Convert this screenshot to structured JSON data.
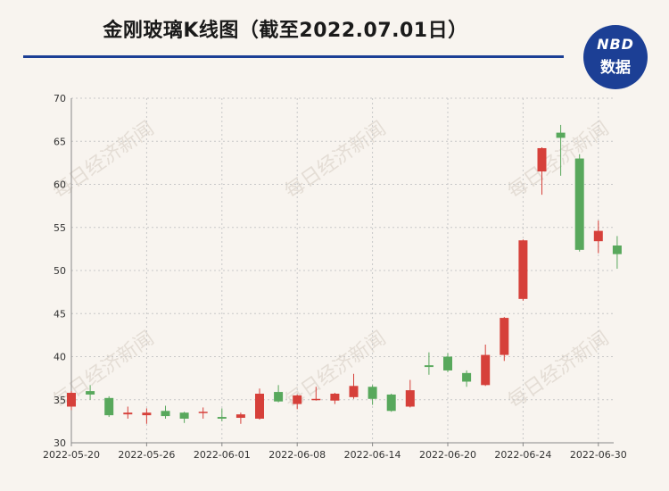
{
  "header": {
    "title": "金刚玻璃K线图（截至2022.07.01日）",
    "logo_top": "NBD",
    "logo_bottom": "数据",
    "watermark": "每日经济新闻"
  },
  "colors": {
    "up": "#d6403a",
    "down": "#58a85c",
    "accent": "#1c3f95",
    "grid": "#c8c8c8"
  },
  "chart_data": {
    "type": "candlestick",
    "title": "金刚玻璃K线图（截至2022.07.01日）",
    "ylim": [
      30,
      70
    ],
    "yticks": [
      30,
      35,
      40,
      45,
      50,
      55,
      60,
      65,
      70
    ],
    "xtick_labels": [
      "2022-05-20",
      "2022-05-26",
      "2022-06-01",
      "2022-06-08",
      "2022-06-14",
      "2022-06-20",
      "2022-06-24",
      "2022-06-30"
    ],
    "xtick_indices": [
      0,
      4,
      8,
      12,
      16,
      20,
      24,
      28
    ],
    "grid": true,
    "candles": [
      {
        "open": 34.2,
        "close": 35.8,
        "high": 36.0,
        "low": 33.8
      },
      {
        "open": 36.0,
        "close": 35.6,
        "high": 36.7,
        "low": 35.0
      },
      {
        "open": 35.2,
        "close": 33.2,
        "high": 35.4,
        "low": 33.0
      },
      {
        "open": 33.3,
        "close": 33.5,
        "high": 34.2,
        "low": 32.8
      },
      {
        "open": 33.2,
        "close": 33.5,
        "high": 34.0,
        "low": 32.2
      },
      {
        "open": 33.7,
        "close": 33.1,
        "high": 34.3,
        "low": 32.8
      },
      {
        "open": 33.5,
        "close": 32.8,
        "high": 33.6,
        "low": 32.3
      },
      {
        "open": 33.5,
        "close": 33.6,
        "high": 34.1,
        "low": 32.8
      },
      {
        "open": 33.0,
        "close": 32.8,
        "high": 34.0,
        "low": 32.5
      },
      {
        "open": 32.9,
        "close": 33.3,
        "high": 33.5,
        "low": 32.2
      },
      {
        "open": 32.8,
        "close": 35.7,
        "high": 36.3,
        "low": 32.7
      },
      {
        "open": 35.9,
        "close": 34.8,
        "high": 36.7,
        "low": 34.7
      },
      {
        "open": 34.5,
        "close": 35.5,
        "high": 35.6,
        "low": 33.9
      },
      {
        "open": 35.1,
        "close": 35.1,
        "high": 36.5,
        "low": 34.9
      },
      {
        "open": 34.9,
        "close": 35.7,
        "high": 35.8,
        "low": 34.5
      },
      {
        "open": 35.3,
        "close": 36.6,
        "high": 38.0,
        "low": 35.1
      },
      {
        "open": 36.5,
        "close": 35.1,
        "high": 36.7,
        "low": 34.4
      },
      {
        "open": 35.6,
        "close": 33.7,
        "high": 35.7,
        "low": 33.6
      },
      {
        "open": 34.2,
        "close": 36.1,
        "high": 37.3,
        "low": 34.1
      },
      {
        "open": 39.0,
        "close": 38.8,
        "high": 40.5,
        "low": 37.9
      },
      {
        "open": 40.0,
        "close": 38.4,
        "high": 40.4,
        "low": 38.2
      },
      {
        "open": 38.1,
        "close": 37.1,
        "high": 38.4,
        "low": 36.5
      },
      {
        "open": 36.7,
        "close": 40.2,
        "high": 41.4,
        "low": 36.6
      },
      {
        "open": 40.2,
        "close": 44.5,
        "high": 44.6,
        "low": 39.5
      },
      {
        "open": 46.7,
        "close": 53.5,
        "high": 53.6,
        "low": 46.5
      },
      {
        "open": 61.5,
        "close": 64.2,
        "high": 64.3,
        "low": 58.8
      },
      {
        "open": 66.0,
        "close": 65.4,
        "high": 66.9,
        "low": 61.0
      },
      {
        "open": 63.0,
        "close": 52.4,
        "high": 63.5,
        "low": 52.2
      },
      {
        "open": 53.4,
        "close": 54.6,
        "high": 55.8,
        "low": 52.0
      },
      {
        "open": 52.9,
        "close": 51.9,
        "high": 54.0,
        "low": 50.2
      }
    ]
  }
}
